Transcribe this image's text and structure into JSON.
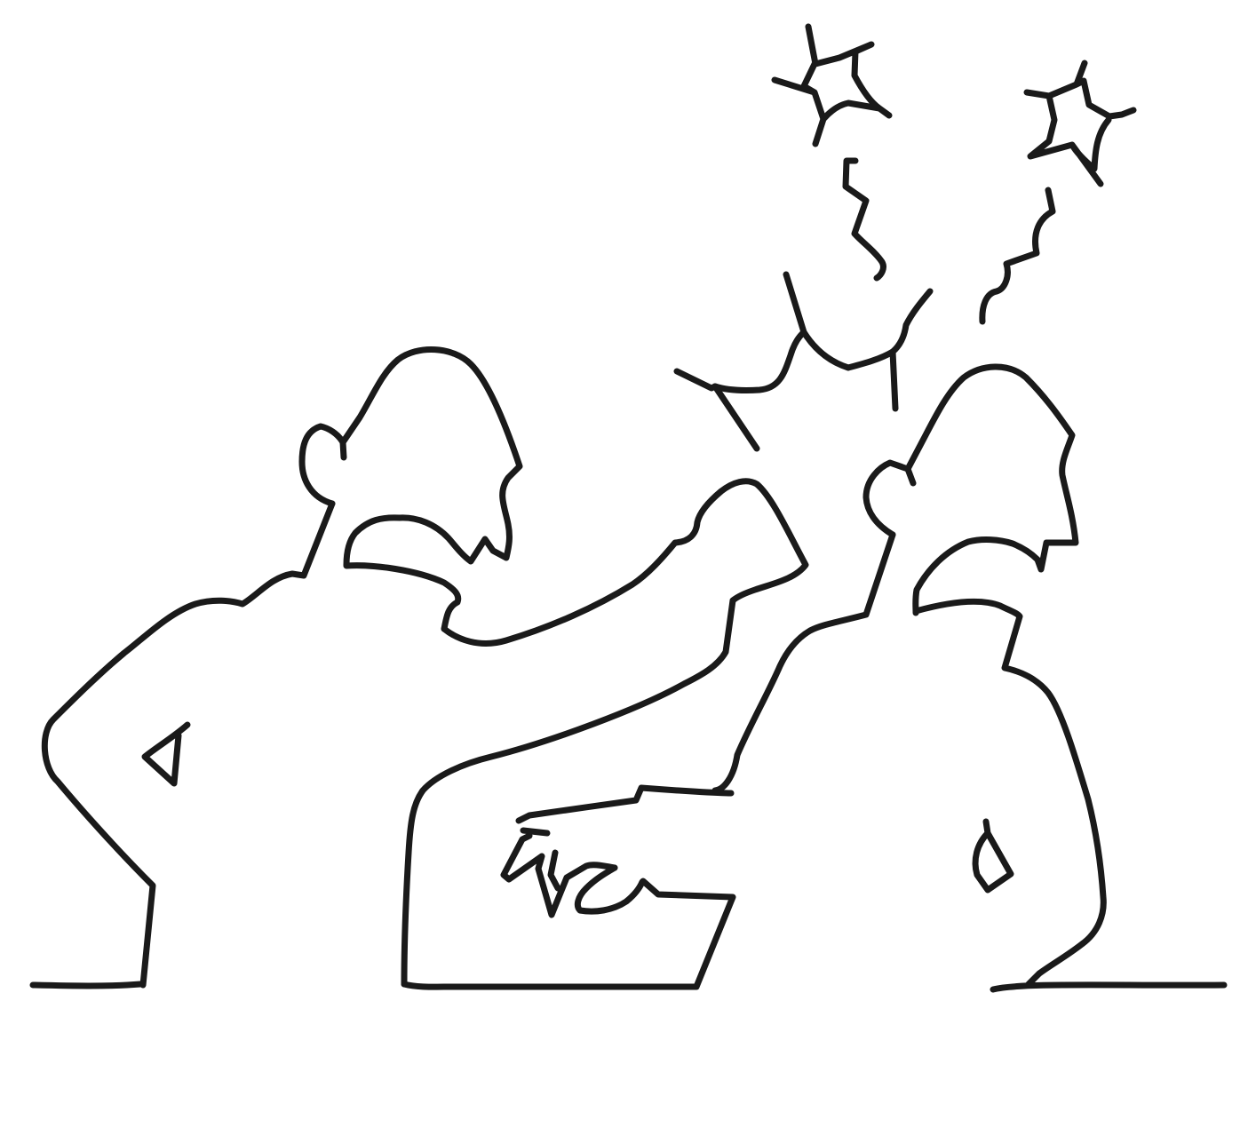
{
  "illustration": {
    "style": "single-weight black line art",
    "background_color": "#ffffff",
    "stroke_color": "#1a1a1a",
    "figures": [
      "left-person",
      "middle-person",
      "right-person"
    ],
    "effects": [
      "impact-burst",
      "dizzy-star-left",
      "dizzy-star-right",
      "motion-squiggle-left",
      "motion-squiggle-right"
    ]
  }
}
